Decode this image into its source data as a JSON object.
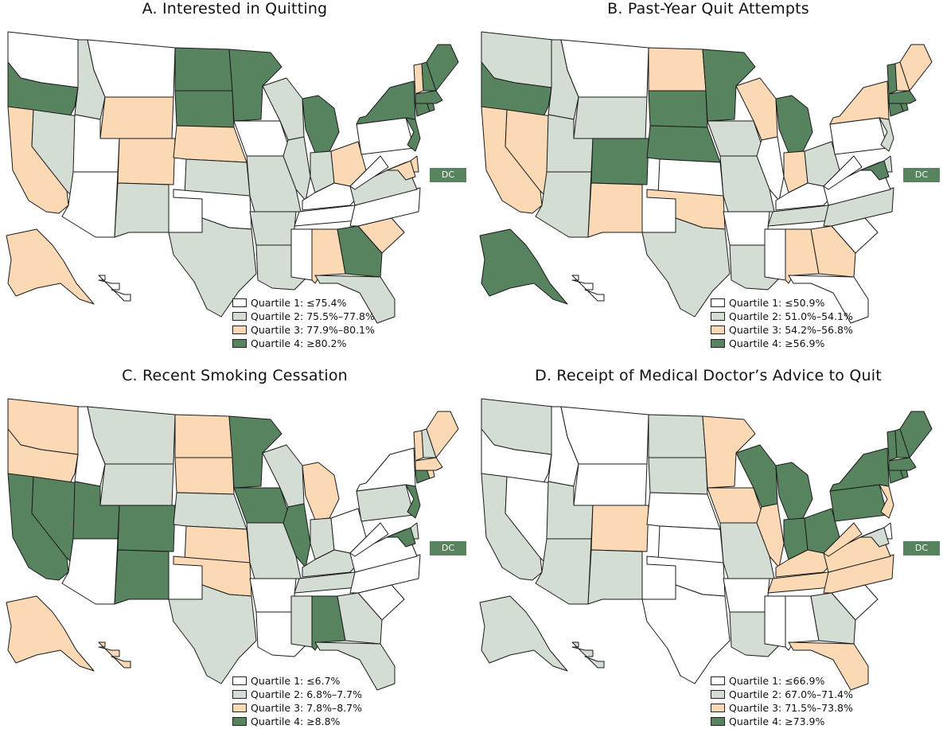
{
  "colors": {
    "q1": "#ffffff",
    "q2": "#d4ddd4",
    "q3": "#fbd9b5",
    "q4": "#57835f",
    "stroke": "#1a1a1a"
  },
  "dc_label": "DC",
  "panels": [
    {
      "title": "A. Interested in Quitting",
      "legend": [
        "Quartile 1: ≤75.4%",
        "Quartile 2: 75.5%–77.8%",
        "Quartile 3: 77.9%–80.1%",
        "Quartile 4: ≥80.2%"
      ],
      "quartiles": {
        "WA": 1,
        "OR": 4,
        "CA": 3,
        "NV": 2,
        "ID": 2,
        "MT": 1,
        "WY": 3,
        "UT": 1,
        "CO": 3,
        "AZ": 1,
        "NM": 2,
        "ND": 4,
        "SD": 4,
        "NE": 3,
        "KS": 2,
        "OK": 1,
        "TX": 2,
        "MN": 4,
        "IA": 1,
        "MO": 2,
        "AR": 2,
        "LA": 2,
        "WI": 2,
        "IL": 2,
        "MI": 4,
        "IN": 2,
        "OH": 3,
        "KY": 1,
        "TN": 1,
        "MS": 1,
        "AL": 3,
        "GA": 4,
        "FL": 2,
        "SC": 3,
        "NC": 1,
        "VA": 2,
        "WV": 1,
        "MD": 3,
        "DE": 3,
        "PA": 1,
        "NY": 4,
        "NJ": 4,
        "CT": 4,
        "RI": 4,
        "MA": 4,
        "VT": 3,
        "NH": 4,
        "ME": 4,
        "AK": 3,
        "HI": 1
      }
    },
    {
      "title": "B. Past-Year Quit Attempts",
      "legend": [
        "Quartile 1: ≤50.9%",
        "Quartile 2: 51.0%–54.1%",
        "Quartile 3: 54.2%–56.8%",
        "Quartile 4: ≥56.9%"
      ],
      "quartiles": {
        "WA": 2,
        "OR": 4,
        "CA": 3,
        "NV": 3,
        "ID": 2,
        "MT": 1,
        "WY": 2,
        "UT": 2,
        "CO": 4,
        "AZ": 2,
        "NM": 3,
        "ND": 3,
        "SD": 4,
        "NE": 4,
        "KS": 1,
        "OK": 3,
        "TX": 2,
        "MN": 4,
        "IA": 2,
        "MO": 2,
        "AR": 1,
        "LA": 2,
        "WI": 3,
        "IL": 1,
        "MI": 4,
        "IN": 3,
        "OH": 2,
        "KY": 1,
        "TN": 2,
        "MS": 1,
        "AL": 3,
        "GA": 3,
        "FL": 1,
        "SC": 1,
        "NC": 2,
        "VA": 1,
        "WV": 1,
        "MD": 4,
        "DE": 2,
        "PA": 1,
        "NY": 3,
        "NJ": 2,
        "CT": 4,
        "RI": 4,
        "MA": 4,
        "VT": 4,
        "NH": 3,
        "ME": 3,
        "AK": 4,
        "HI": 1
      }
    },
    {
      "title": "C. Recent Smoking Cessation",
      "legend": [
        "Quartile 1: ≤6.7%",
        "Quartile 2: 6.8%–7.7%",
        "Quartile 3: 7.8%–8.7%",
        "Quartile 4: ≥8.8%"
      ],
      "quartiles": {
        "WA": 3,
        "OR": 3,
        "CA": 4,
        "NV": 4,
        "ID": 1,
        "MT": 2,
        "WY": 2,
        "UT": 4,
        "CO": 4,
        "AZ": 1,
        "NM": 4,
        "ND": 3,
        "SD": 3,
        "NE": 2,
        "KS": 3,
        "OK": 3,
        "TX": 2,
        "MN": 4,
        "IA": 4,
        "MO": 2,
        "AR": 1,
        "LA": 1,
        "WI": 2,
        "IL": 4,
        "MI": 3,
        "IN": 2,
        "OH": 1,
        "KY": 2,
        "TN": 2,
        "MS": 2,
        "AL": 4,
        "GA": 2,
        "FL": 2,
        "SC": 1,
        "NC": 1,
        "VA": 1,
        "WV": 1,
        "MD": 4,
        "DE": 2,
        "PA": 2,
        "NY": 1,
        "NJ": 4,
        "CT": 4,
        "RI": 3,
        "MA": 3,
        "VT": 3,
        "NH": 2,
        "ME": 3,
        "AK": 3,
        "HI": 3
      }
    },
    {
      "title": "D. Receipt of Medical Doctor’s Advice to Quit",
      "legend": [
        "Quartile 1: ≤66.9%",
        "Quartile 2: 67.0%–71.4%",
        "Quartile 3: 71.5%–73.8%",
        "Quartile 4: ≥73.9%"
      ],
      "quartiles": {
        "WA": 2,
        "OR": 1,
        "CA": 2,
        "NV": 1,
        "ID": 1,
        "MT": 1,
        "WY": 1,
        "UT": 2,
        "CO": 3,
        "AZ": 2,
        "NM": 2,
        "ND": 2,
        "SD": 2,
        "NE": 1,
        "KS": 1,
        "OK": 1,
        "TX": 1,
        "MN": 3,
        "IA": 3,
        "MO": 2,
        "AR": 1,
        "LA": 2,
        "WI": 4,
        "IL": 3,
        "MI": 4,
        "IN": 4,
        "OH": 4,
        "KY": 3,
        "TN": 3,
        "MS": 1,
        "AL": 1,
        "GA": 2,
        "FL": 3,
        "SC": 1,
        "NC": 3,
        "VA": 3,
        "WV": 3,
        "MD": 2,
        "DE": 1,
        "PA": 4,
        "NY": 4,
        "NJ": 3,
        "CT": 4,
        "RI": 4,
        "MA": 4,
        "VT": 4,
        "NH": 4,
        "ME": 4,
        "AK": 2,
        "HI": 2
      }
    }
  ]
}
